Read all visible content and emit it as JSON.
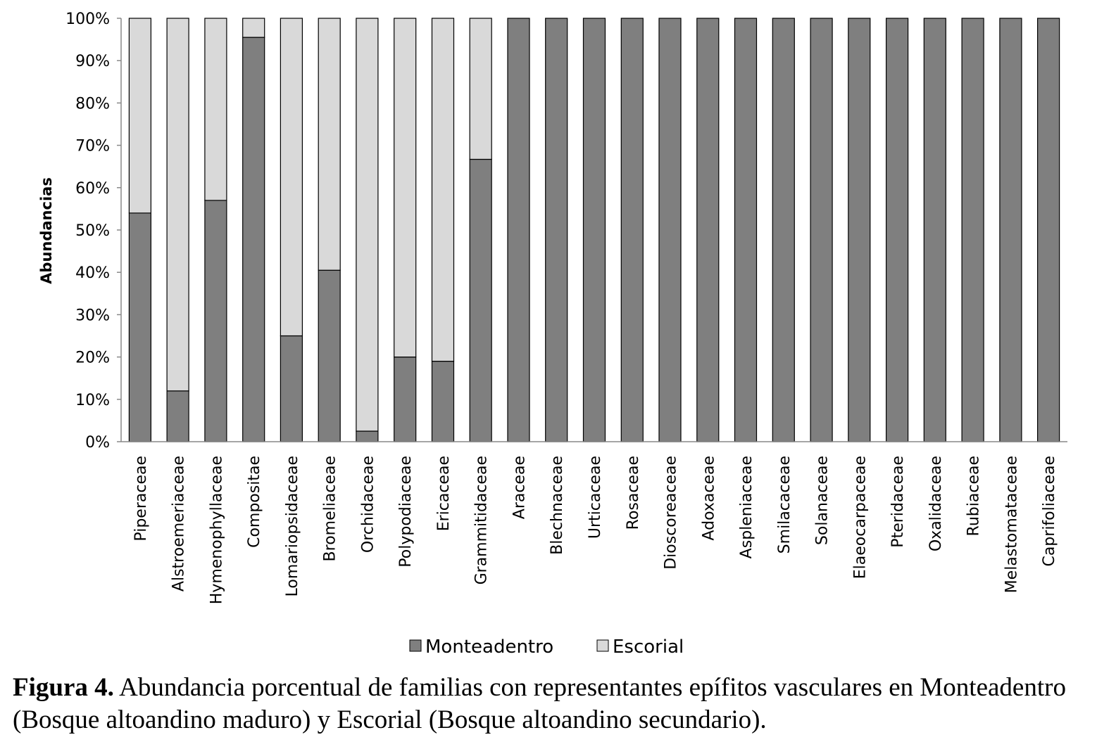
{
  "chart_data": {
    "type": "bar",
    "stacked": true,
    "ylabel": "Abundancias",
    "ylim": [
      0,
      100
    ],
    "y_ticks": [
      "0%",
      "10%",
      "20%",
      "30%",
      "40%",
      "50%",
      "60%",
      "70%",
      "80%",
      "90%",
      "100%"
    ],
    "grid": false,
    "legend_position": "bottom",
    "categories": [
      "Piperaceae",
      "Alstroemeriaceae",
      "Hymenophyllaceae",
      "Compositae",
      "Lomariopsidaceae",
      "Bromeliaceae",
      "Orchidaceae",
      "Polypodiaceae",
      "Ericaceae",
      "Grammitidaceae",
      "Araceae",
      "Blechnaceae",
      "Urticaceae",
      "Rosaceae",
      "Dioscoreaceae",
      "Adoxaceae",
      "Aspleniaceae",
      "Smilacaceae",
      "Solanaceae",
      "Elaeocarpaceae",
      "Pteridaceae",
      "Oxalidaceae",
      "Rubiaceae",
      "Melastomataceae",
      "Caprifoliaceae"
    ],
    "series": [
      {
        "name": "Monteadentro",
        "color": "#7f7f7f",
        "values": [
          54,
          12,
          57,
          95.5,
          25,
          40.5,
          2.5,
          20,
          19,
          66.7,
          100,
          100,
          100,
          100,
          100,
          100,
          100,
          100,
          100,
          100,
          100,
          100,
          100,
          100,
          100
        ]
      },
      {
        "name": "Escorial",
        "color": "#d9d9d9",
        "values": [
          46,
          88,
          43,
          4.5,
          75,
          59.5,
          97.5,
          80,
          81,
          33.3,
          0,
          0,
          0,
          0,
          0,
          0,
          0,
          0,
          0,
          0,
          0,
          0,
          0,
          0,
          0
        ]
      }
    ]
  },
  "caption": {
    "label": "Figura 4.",
    "text": " Abundancia porcentual de familias con representantes epífitos vasculares en Monteadentro (Bosque altoandino maduro) y Escorial (Bosque altoandino secundario)."
  }
}
